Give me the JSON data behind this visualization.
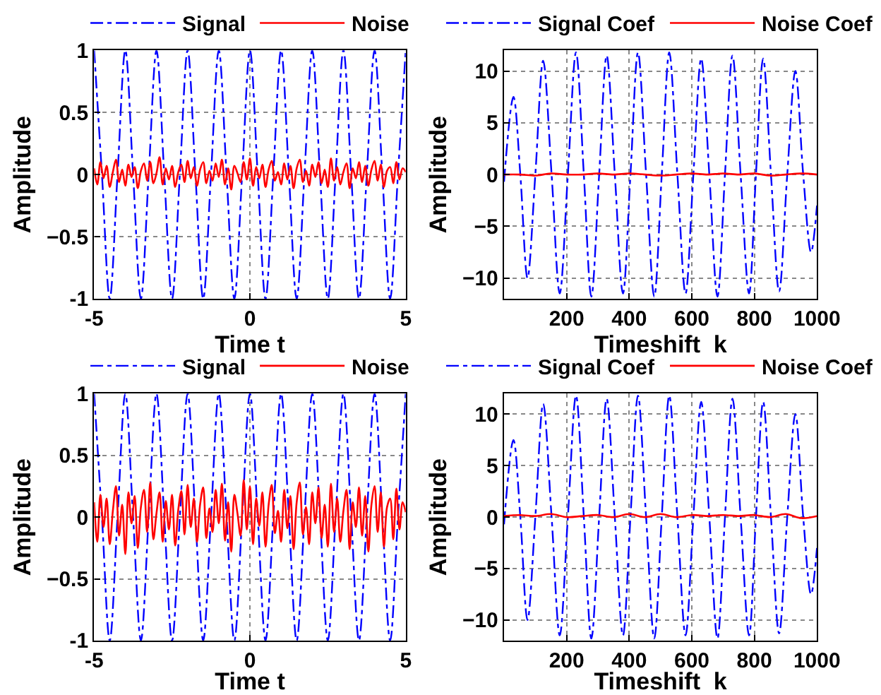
{
  "chart_data": [
    {
      "type": "line",
      "xlabel": "Time t",
      "ylabel": "Amplitude",
      "xlim": [
        -5,
        5
      ],
      "ylim": [
        -1,
        1
      ],
      "xticks": [
        -5,
        0,
        5
      ],
      "yticks": [
        -1,
        {
          "value": -0.5,
          "label": "−0.5"
        },
        0,
        0.5,
        1
      ],
      "grid": true,
      "legend": "top",
      "series": [
        {
          "name": "Signal",
          "color": "#0000ff",
          "line_style": "dashdot",
          "x": [
            -5,
            -4.75,
            -4.5,
            -4.25,
            -4,
            -3.75,
            -3.5,
            -3.25,
            -3,
            -2.75,
            -2.5,
            -2.25,
            -2,
            -1.75,
            -1.5,
            -1.25,
            -1,
            -0.75,
            -0.5,
            -0.25,
            0,
            0.25,
            0.5,
            0.75,
            1,
            1.25,
            1.5,
            1.75,
            2,
            2.25,
            2.5,
            2.75,
            3,
            3.25,
            3.5,
            3.75,
            4,
            4.25,
            4.5,
            4.75,
            5
          ],
          "values": [
            1,
            0,
            -1,
            0,
            1,
            0,
            -1,
            0,
            1,
            0,
            -1,
            0,
            1,
            0,
            -1,
            0,
            1,
            0,
            -1,
            0,
            1,
            0,
            -1,
            0,
            1,
            0,
            -1,
            0,
            1,
            0,
            -1,
            0,
            1,
            0,
            -1,
            0,
            1,
            0,
            -1,
            0,
            1
          ]
        },
        {
          "name": "Noise",
          "color": "#ff0000",
          "line_style": "solid",
          "x": [
            -5,
            -4.9,
            -4.8,
            -4.7,
            -4.6,
            -4.5,
            -4.4,
            -4.3,
            -4.2,
            -4.1,
            -4,
            -3.9,
            -3.8,
            -3.7,
            -3.6,
            -3.5,
            -3.4,
            -3.3,
            -3.2,
            -3.1,
            -3,
            -2.9,
            -2.8,
            -2.7,
            -2.6,
            -2.5,
            -2.4,
            -2.3,
            -2.2,
            -2.1,
            -2,
            -1.9,
            -1.8,
            -1.7,
            -1.6,
            -1.5,
            -1.4,
            -1.3,
            -1.2,
            -1.1,
            -1,
            -0.9,
            -0.8,
            -0.7,
            -0.6,
            -0.5,
            -0.4,
            -0.3,
            -0.2,
            -0.1,
            0,
            0.1,
            0.2,
            0.3,
            0.4,
            0.5,
            0.6,
            0.7,
            0.8,
            0.9,
            1,
            1.1,
            1.2,
            1.3,
            1.4,
            1.5,
            1.6,
            1.7,
            1.8,
            1.9,
            2,
            2.1,
            2.2,
            2.3,
            2.4,
            2.5,
            2.6,
            2.7,
            2.8,
            2.9,
            3,
            3.1,
            3.2,
            3.3,
            3.4,
            3.5,
            3.6,
            3.7,
            3.8,
            3.9,
            4,
            4.1,
            4.2,
            4.3,
            4.4,
            4.5,
            4.6,
            4.7,
            4.8,
            4.9,
            5
          ],
          "values": [
            0.05,
            -0.08,
            0.1,
            -0.03,
            0.07,
            -0.1,
            0.02,
            0.12,
            -0.06,
            0.04,
            -0.09,
            0.08,
            -0.02,
            0.06,
            -0.11,
            0.03,
            0.09,
            -0.05,
            0.1,
            -0.07,
            0.01,
            0.14,
            -0.08,
            0.05,
            -0.04,
            0.07,
            -0.1,
            0.02,
            0.08,
            -0.06,
            0.11,
            -0.03,
            0.06,
            -0.09,
            0.04,
            0.1,
            -0.07,
            0.03,
            -0.05,
            0.09,
            -0.02,
            0.12,
            -0.08,
            0.05,
            -0.12,
            0.07,
            0.01,
            -0.06,
            0.1,
            -0.04,
            0.13,
            -0.09,
            0.06,
            -0.03,
            0.08,
            -0.1,
            0.04,
            0.11,
            -0.05,
            0.02,
            -0.08,
            0.09,
            -0.04,
            0.07,
            -0.11,
            0.05,
            0.12,
            -0.06,
            0.03,
            -0.09,
            0.08,
            -0.02,
            0.1,
            -0.07,
            0.04,
            -0.1,
            0.13,
            -0.05,
            0.06,
            -0.08,
            0.02,
            0.09,
            -0.11,
            0.05,
            -0.03,
            0.1,
            -0.06,
            0.07,
            -0.09,
            0.04,
            0.11,
            -0.05,
            0.08,
            -0.1,
            0.03,
            0.06,
            -0.07,
            0.1,
            -0.04,
            0.05,
            0.02
          ]
        }
      ]
    },
    {
      "type": "line",
      "xlabel": "Timeshift  k",
      "ylabel": "Amplitude",
      "xlim": [
        0,
        1000
      ],
      "ylim": [
        -12,
        12
      ],
      "xticks": [
        200,
        400,
        600,
        800,
        1000
      ],
      "yticks": [
        {
          "value": -10,
          "label": "−10"
        },
        {
          "value": -5,
          "label": "−5"
        },
        0,
        5,
        10
      ],
      "grid": true,
      "legend": "top",
      "series": [
        {
          "name": "Signal Coef",
          "color": "#0000ff",
          "line_style": "dashdot",
          "x": [
            0,
            30,
            52,
            75,
            100,
            125,
            152,
            178,
            204,
            230,
            255,
            279,
            304,
            328,
            354,
            380,
            404,
            428,
            454,
            480,
            504,
            528,
            554,
            580,
            605,
            630,
            656,
            682,
            706,
            730,
            756,
            783,
            805,
            828,
            853,
            879,
            905,
            931,
            956,
            981,
            1000
          ],
          "values": [
            -0.7,
            7.5,
            0,
            -10,
            0,
            11,
            0,
            -11.5,
            0,
            11.8,
            0,
            -11.8,
            0,
            11.5,
            0,
            -11.5,
            0,
            11.8,
            0,
            -11.8,
            0,
            11.8,
            0,
            -11.5,
            0,
            11.2,
            0,
            -11.8,
            0,
            11.5,
            0,
            -11.5,
            0,
            11.2,
            0,
            -11.3,
            0,
            10,
            0,
            -7.5,
            -3
          ]
        },
        {
          "name": "Noise Coef",
          "color": "#ff0000",
          "line_style": "solid",
          "x": [
            0,
            50,
            100,
            150,
            200,
            250,
            300,
            350,
            400,
            450,
            500,
            550,
            600,
            650,
            700,
            750,
            800,
            850,
            900,
            950,
            1000
          ],
          "values": [
            0,
            0,
            -0.1,
            0.1,
            0,
            0,
            0.1,
            0,
            0.1,
            0,
            -0.1,
            0,
            0.1,
            0,
            0.1,
            0,
            0.1,
            -0.1,
            0,
            0.1,
            0
          ]
        }
      ]
    },
    {
      "type": "line",
      "xlabel": "Time t",
      "ylabel": "Amplitude",
      "xlim": [
        -5,
        5
      ],
      "ylim": [
        -1,
        1
      ],
      "xticks": [
        -5,
        0,
        5
      ],
      "yticks": [
        -1,
        {
          "value": -0.5,
          "label": "−0.5"
        },
        0,
        0.5,
        1
      ],
      "grid": true,
      "legend": "top",
      "series": [
        {
          "name": "Signal",
          "color": "#0000ff",
          "line_style": "dashdot",
          "x": [
            -5,
            -4.75,
            -4.5,
            -4.25,
            -4,
            -3.75,
            -3.5,
            -3.25,
            -3,
            -2.75,
            -2.5,
            -2.25,
            -2,
            -1.75,
            -1.5,
            -1.25,
            -1,
            -0.75,
            -0.5,
            -0.25,
            0,
            0.25,
            0.5,
            0.75,
            1,
            1.25,
            1.5,
            1.75,
            2,
            2.25,
            2.5,
            2.75,
            3,
            3.25,
            3.5,
            3.75,
            4,
            4.25,
            4.5,
            4.75,
            5
          ],
          "values": [
            1,
            0,
            -1,
            0,
            1,
            0,
            -1,
            0,
            1,
            0,
            -1,
            0,
            1,
            0,
            -1,
            0,
            1,
            0,
            -1,
            0,
            1,
            0,
            -1,
            0,
            1,
            0,
            -1,
            0,
            1,
            0,
            -1,
            0,
            1,
            0,
            -1,
            0,
            1,
            0,
            -1,
            0,
            1
          ]
        },
        {
          "name": "Noise",
          "color": "#ff0000",
          "line_style": "solid",
          "x": [
            -5,
            -4.9,
            -4.8,
            -4.7,
            -4.6,
            -4.5,
            -4.4,
            -4.3,
            -4.2,
            -4.1,
            -4,
            -3.9,
            -3.8,
            -3.7,
            -3.6,
            -3.5,
            -3.4,
            -3.3,
            -3.2,
            -3.1,
            -3,
            -2.9,
            -2.8,
            -2.7,
            -2.6,
            -2.5,
            -2.4,
            -2.3,
            -2.2,
            -2.1,
            -2,
            -1.9,
            -1.8,
            -1.7,
            -1.6,
            -1.5,
            -1.4,
            -1.3,
            -1.2,
            -1.1,
            -1,
            -0.9,
            -0.8,
            -0.7,
            -0.6,
            -0.5,
            -0.4,
            -0.3,
            -0.2,
            -0.1,
            0,
            0.1,
            0.2,
            0.3,
            0.4,
            0.5,
            0.6,
            0.7,
            0.8,
            0.9,
            1,
            1.1,
            1.2,
            1.3,
            1.4,
            1.5,
            1.6,
            1.7,
            1.8,
            1.9,
            2,
            2.1,
            2.2,
            2.3,
            2.4,
            2.5,
            2.6,
            2.7,
            2.8,
            2.9,
            3,
            3.1,
            3.2,
            3.3,
            3.4,
            3.5,
            3.6,
            3.7,
            3.8,
            3.9,
            4,
            4.1,
            4.2,
            4.3,
            4.4,
            4.5,
            4.6,
            4.7,
            4.8,
            4.9,
            5
          ],
          "values": [
            0.12,
            -0.2,
            0.18,
            -0.08,
            0.15,
            -0.22,
            0.05,
            0.25,
            -0.15,
            0.1,
            -0.3,
            0.2,
            -0.05,
            0.17,
            -0.25,
            0.08,
            0.22,
            -0.12,
            0.28,
            -0.18,
            0.03,
            0.2,
            -0.2,
            0.13,
            -0.1,
            0.18,
            -0.23,
            0.06,
            0.21,
            -0.14,
            0.26,
            -0.08,
            0.15,
            -0.2,
            0.1,
            0.24,
            -0.17,
            0.07,
            -0.12,
            0.22,
            -0.05,
            0.27,
            -0.19,
            0.12,
            -0.28,
            0.18,
            0.03,
            -0.15,
            0.3,
            -0.1,
            0.25,
            -0.22,
            0.15,
            -0.07,
            0.2,
            -0.24,
            0.1,
            0.26,
            -0.13,
            0.05,
            -0.2,
            0.22,
            -0.09,
            0.17,
            -0.26,
            0.12,
            0.28,
            -0.14,
            0.08,
            -0.22,
            0.2,
            -0.05,
            0.24,
            -0.17,
            0.1,
            -0.24,
            0.27,
            -0.12,
            0.15,
            -0.2,
            0.05,
            0.22,
            -0.26,
            0.12,
            -0.08,
            0.24,
            -0.15,
            0.17,
            -0.28,
            0.1,
            0.25,
            -0.12,
            0.2,
            -0.24,
            0.08,
            0.15,
            -0.18,
            0.23,
            -0.1,
            0.12,
            0.04
          ]
        }
      ]
    },
    {
      "type": "line",
      "xlabel": "Timeshift  k",
      "ylabel": "Amplitude",
      "xlim": [
        0,
        1000
      ],
      "ylim": [
        -12,
        12
      ],
      "xticks": [
        200,
        400,
        600,
        800,
        1000
      ],
      "yticks": [
        {
          "value": -10,
          "label": "−10"
        },
        {
          "value": -5,
          "label": "−5"
        },
        0,
        5,
        10
      ],
      "grid": true,
      "legend": "top",
      "series": [
        {
          "name": "Signal Coef",
          "color": "#0000ff",
          "line_style": "dashdot",
          "x": [
            0,
            30,
            52,
            75,
            100,
            125,
            152,
            178,
            204,
            230,
            255,
            279,
            304,
            328,
            354,
            380,
            404,
            428,
            454,
            480,
            504,
            528,
            554,
            580,
            605,
            630,
            656,
            682,
            706,
            730,
            756,
            783,
            805,
            828,
            853,
            879,
            905,
            931,
            956,
            981,
            1000
          ],
          "values": [
            -0.7,
            7.5,
            0,
            -10,
            0,
            11,
            0,
            -11.5,
            0,
            11.8,
            0,
            -11.8,
            0,
            11.5,
            0,
            -11.5,
            0,
            11.8,
            0,
            -11.8,
            0,
            11.8,
            0,
            -11.5,
            0,
            11.2,
            0,
            -11.8,
            0,
            11.5,
            0,
            -11.5,
            0,
            11.2,
            0,
            -11.3,
            0,
            10,
            0,
            -7.5,
            -3
          ]
        },
        {
          "name": "Noise Coef",
          "color": "#ff0000",
          "line_style": "solid",
          "x": [
            0,
            50,
            100,
            150,
            200,
            250,
            300,
            350,
            400,
            450,
            500,
            550,
            600,
            650,
            700,
            750,
            800,
            850,
            900,
            950,
            1000
          ],
          "values": [
            0.1,
            0.2,
            0.1,
            0.3,
            0,
            0.1,
            0.2,
            0,
            0.3,
            0,
            0.3,
            0,
            0.2,
            0.1,
            0.2,
            0.1,
            0.2,
            0,
            0.3,
            -0.1,
            0.1
          ]
        }
      ]
    }
  ]
}
